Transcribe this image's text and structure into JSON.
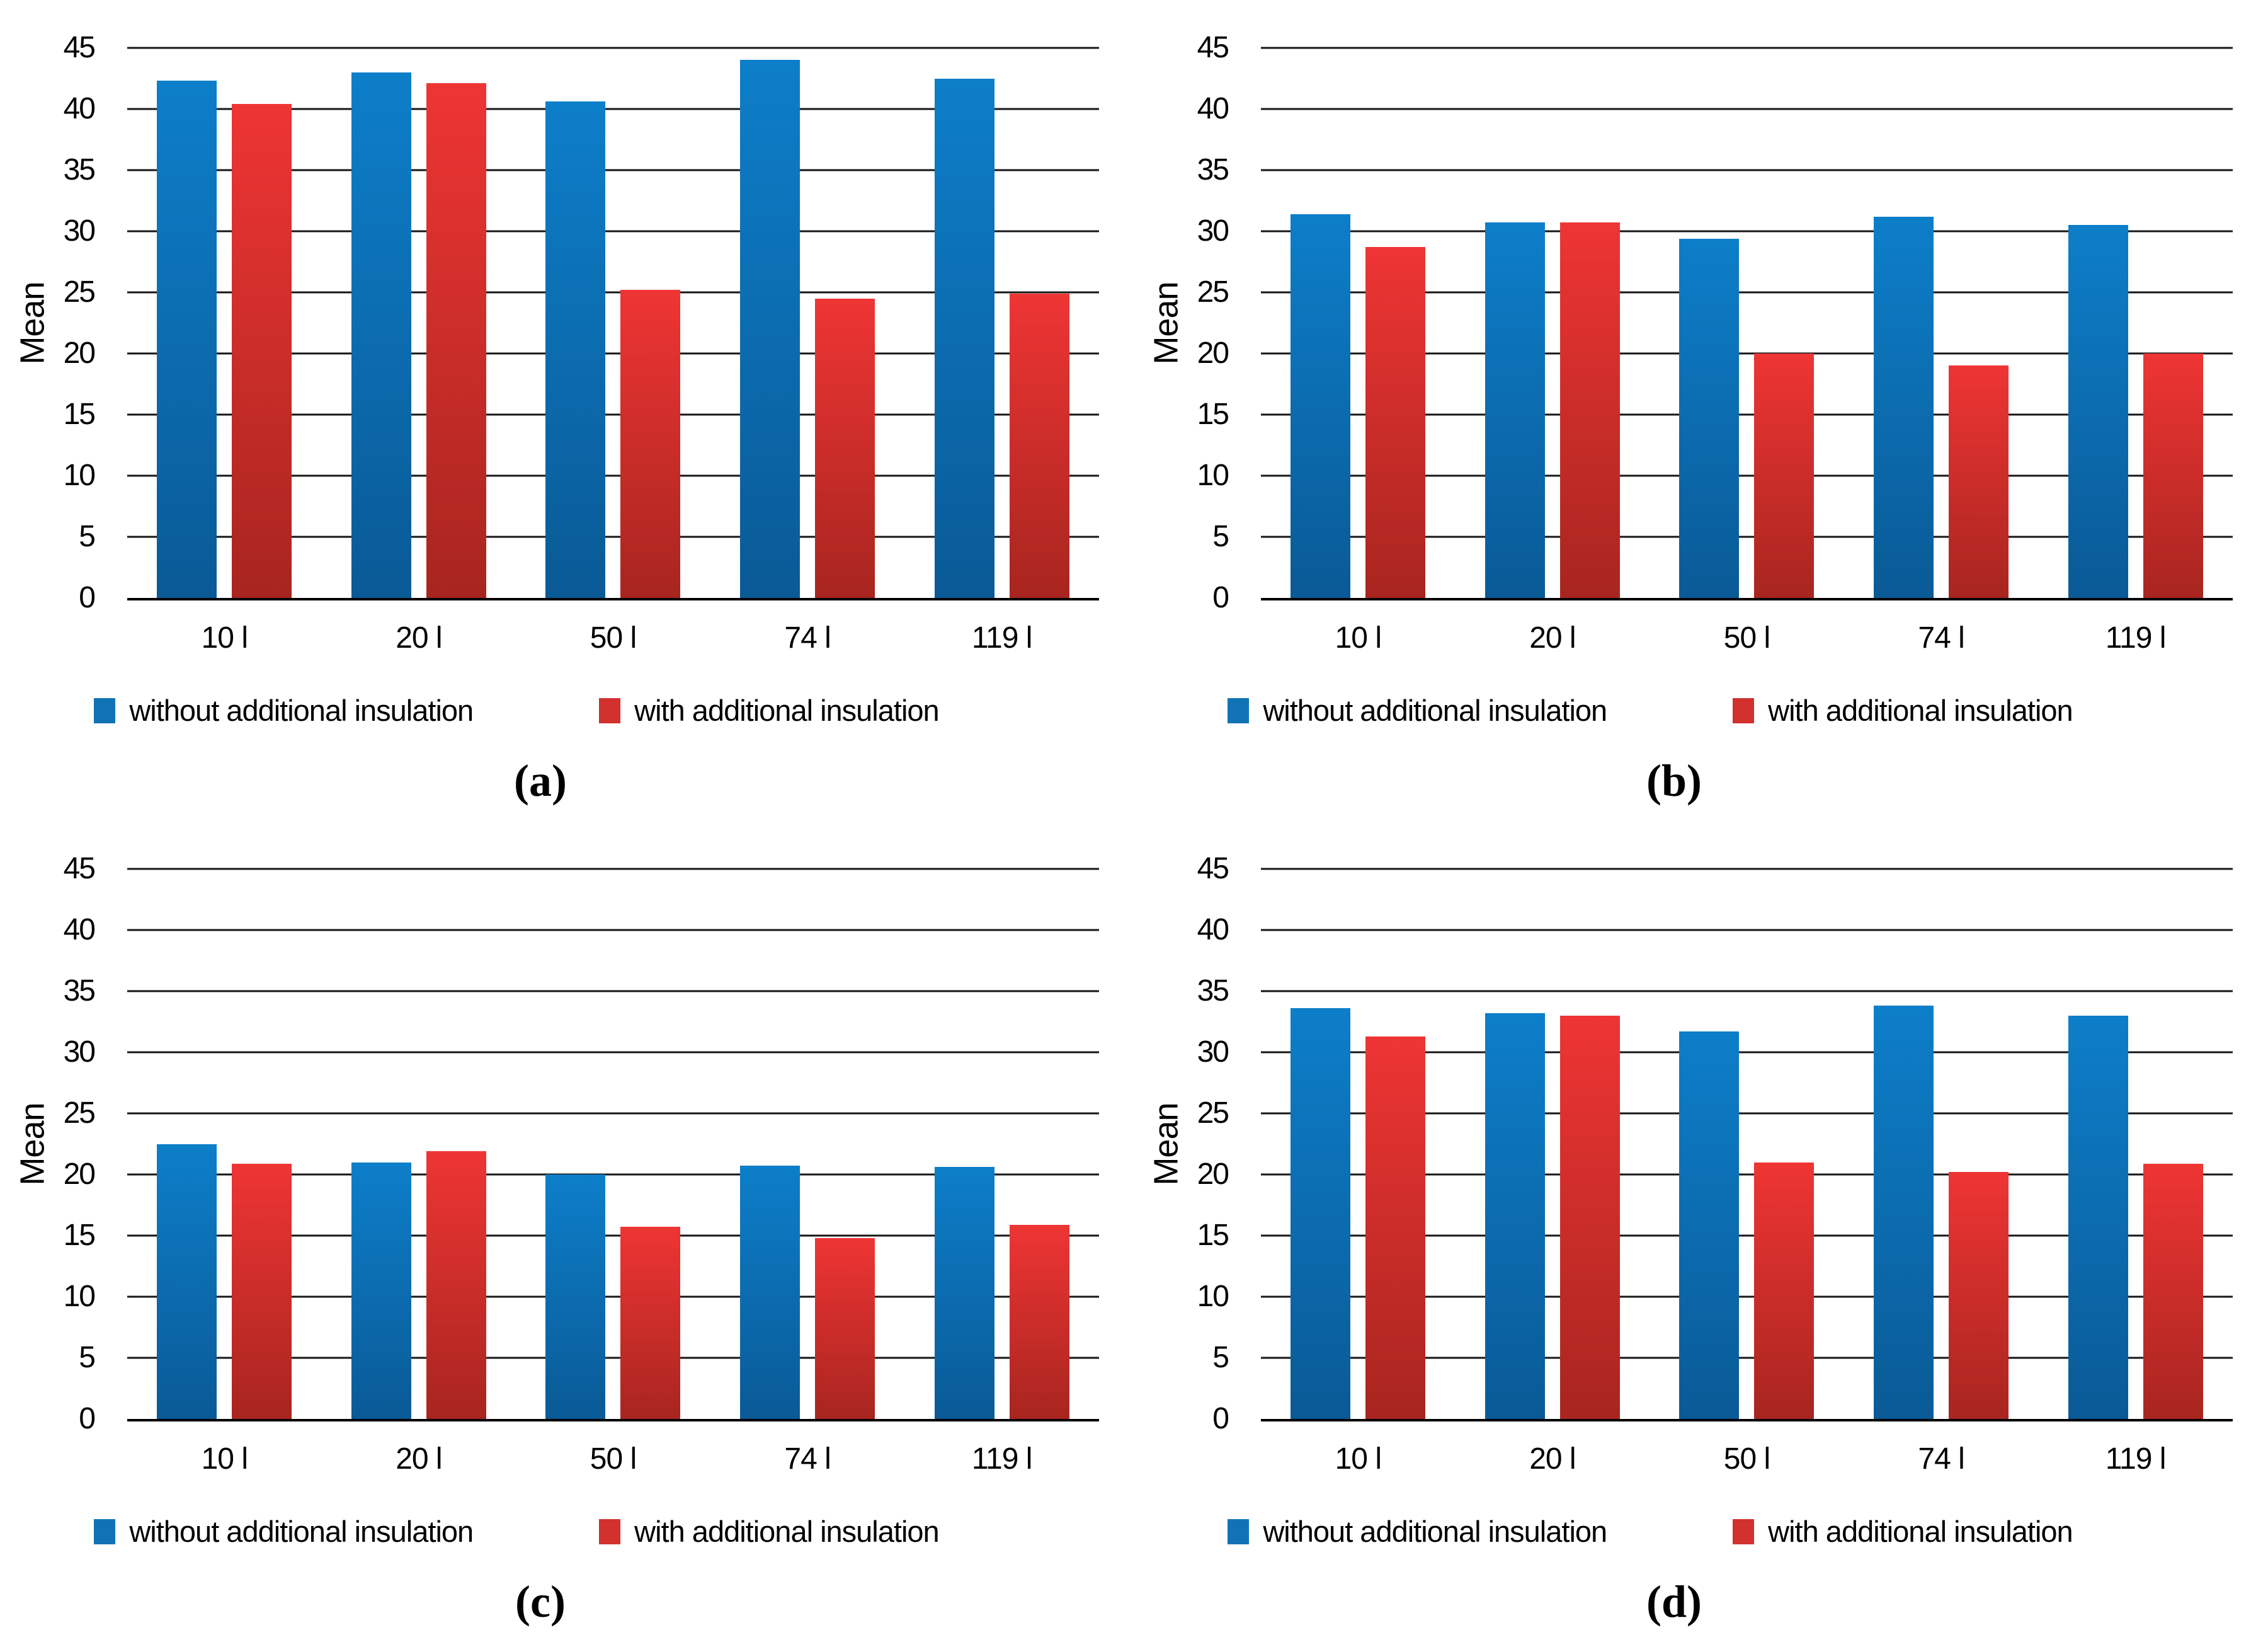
{
  "figure": {
    "ylabel": "Mean",
    "yticks": [
      0,
      5,
      10,
      15,
      20,
      25,
      30,
      35,
      40,
      45
    ],
    "categories": [
      "10 l",
      "20 l",
      "50 l",
      "74 l",
      "119 l"
    ],
    "legend": {
      "blue_label": "without additional insulation",
      "red_label": "with additional insulation"
    },
    "colors": {
      "blue_top": "#0d7ec9",
      "blue_bottom": "#0a5a96",
      "red_top": "#ee3534",
      "red_bottom": "#a8251f",
      "blue_swatch": "#1173b6",
      "red_swatch": "#d2312d",
      "gridline": "#161616",
      "axis": "#000000"
    }
  },
  "chart_data": [
    {
      "panel": "(a)",
      "type": "bar",
      "ylabel": "Mean",
      "xlabel": "",
      "ylim": [
        0,
        45
      ],
      "ytick_step": 5,
      "yticks": [
        0,
        5,
        10,
        15,
        20,
        25,
        30,
        35,
        40,
        45
      ],
      "grid": true,
      "legend_position": "bottom",
      "categories": [
        "10 l",
        "20 l",
        "50 l",
        "74 l",
        "119 l"
      ],
      "series": [
        {
          "name": "without additional insulation",
          "color": "#1173b6",
          "gradient_top": "#0d7ec9",
          "gradient_bottom": "#0a5a96",
          "values": [
            42.3,
            43.0,
            40.6,
            44.0,
            42.5
          ]
        },
        {
          "name": "with additional insulation",
          "color": "#d2312d",
          "gradient_top": "#ee3534",
          "gradient_bottom": "#a8251f",
          "values": [
            40.4,
            42.1,
            25.2,
            24.5,
            24.9
          ]
        }
      ]
    },
    {
      "panel": "(b)",
      "type": "bar",
      "ylabel": "Mean",
      "xlabel": "",
      "ylim": [
        0,
        45
      ],
      "ytick_step": 5,
      "yticks": [
        0,
        5,
        10,
        15,
        20,
        25,
        30,
        35,
        40,
        45
      ],
      "grid": true,
      "legend_position": "bottom",
      "categories": [
        "10 l",
        "20 l",
        "50 l",
        "74 l",
        "119 l"
      ],
      "series": [
        {
          "name": "without additional insulation",
          "color": "#1173b6",
          "gradient_top": "#0d7ec9",
          "gradient_bottom": "#0a5a96",
          "values": [
            31.4,
            30.7,
            29.4,
            31.2,
            30.5
          ]
        },
        {
          "name": "with additional insulation",
          "color": "#d2312d",
          "gradient_top": "#ee3534",
          "gradient_bottom": "#a8251f",
          "values": [
            28.7,
            30.7,
            20.0,
            19.0,
            20.0
          ]
        }
      ]
    },
    {
      "panel": "(c)",
      "type": "bar",
      "ylabel": "Mean",
      "xlabel": "",
      "ylim": [
        0,
        45
      ],
      "ytick_step": 5,
      "yticks": [
        0,
        5,
        10,
        15,
        20,
        25,
        30,
        35,
        40,
        45
      ],
      "grid": true,
      "legend_position": "bottom",
      "categories": [
        "10 l",
        "20 l",
        "50 l",
        "74 l",
        "119 l"
      ],
      "series": [
        {
          "name": "without additional insulation",
          "color": "#1173b6",
          "gradient_top": "#0d7ec9",
          "gradient_bottom": "#0a5a96",
          "values": [
            22.5,
            21.0,
            20.0,
            20.7,
            20.6
          ]
        },
        {
          "name": "with additional insulation",
          "color": "#d2312d",
          "gradient_top": "#ee3534",
          "gradient_bottom": "#a8251f",
          "values": [
            20.9,
            21.9,
            15.7,
            14.8,
            15.9
          ]
        }
      ]
    },
    {
      "panel": "(d)",
      "type": "bar",
      "ylabel": "Mean",
      "xlabel": "",
      "ylim": [
        0,
        45
      ],
      "ytick_step": 5,
      "yticks": [
        0,
        5,
        10,
        15,
        20,
        25,
        30,
        35,
        40,
        45
      ],
      "grid": true,
      "legend_position": "bottom",
      "categories": [
        "10 l",
        "20 l",
        "50 l",
        "74 l",
        "119 l"
      ],
      "series": [
        {
          "name": "without additional insulation",
          "color": "#1173b6",
          "gradient_top": "#0d7ec9",
          "gradient_bottom": "#0a5a96",
          "values": [
            33.6,
            33.2,
            31.7,
            33.8,
            33.0
          ]
        },
        {
          "name": "with additional insulation",
          "color": "#d2312d",
          "gradient_top": "#ee3534",
          "gradient_bottom": "#a8251f",
          "values": [
            31.3,
            33.0,
            21.0,
            20.2,
            20.9
          ]
        }
      ]
    }
  ]
}
